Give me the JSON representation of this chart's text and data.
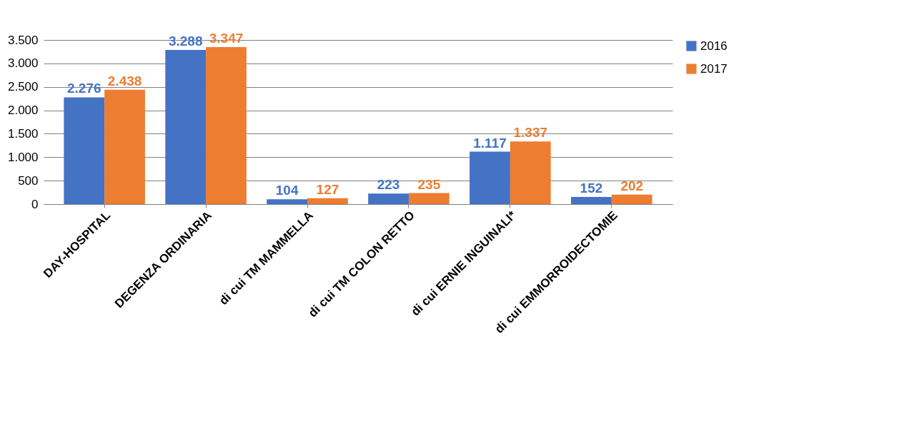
{
  "chart_data": {
    "type": "bar",
    "categories": [
      "DAY-HOSPITAL",
      "DEGENZA ORDINARIA",
      "di cui TM MAMMELLA",
      "di cui TM COLON RETTO",
      "di cui ERNIE INGUINALI*",
      "di cui EMMORROIDECTOMIE"
    ],
    "series": [
      {
        "name": "2016",
        "color": "#4472c4",
        "values": [
          2276,
          3288,
          104,
          223,
          1117,
          152
        ],
        "value_labels": [
          "2.276",
          "3.288",
          "104",
          "223",
          "1.117",
          "152"
        ]
      },
      {
        "name": "2017",
        "color": "#ed7d31",
        "values": [
          2438,
          3347,
          127,
          235,
          1337,
          202
        ],
        "value_labels": [
          "2.438",
          "3.347",
          "127",
          "235",
          "1.337",
          "202"
        ]
      }
    ],
    "ylim": [
      0,
      3500
    ],
    "yticks": [
      0,
      {
        "value": 500,
        "label": "500"
      },
      {
        "value": 1000,
        "label": "1.000"
      },
      {
        "value": 1500,
        "label": "1.500"
      },
      {
        "value": 2000,
        "label": "2.000"
      },
      {
        "value": 2500,
        "label": "2.500"
      },
      {
        "value": 3000,
        "label": "3.000"
      },
      {
        "value": 3500,
        "label": "3.500"
      }
    ],
    "grid": "y",
    "legend": "right"
  }
}
